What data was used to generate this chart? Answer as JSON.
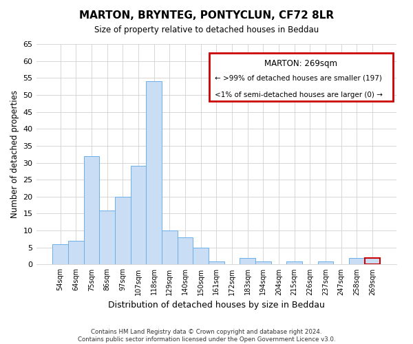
{
  "title": "MARTON, BRYNTEG, PONTYCLUN, CF72 8LR",
  "subtitle": "Size of property relative to detached houses in Beddau",
  "xlabel": "Distribution of detached houses by size in Beddau",
  "ylabel": "Number of detached properties",
  "categories": [
    "54sqm",
    "64sqm",
    "75sqm",
    "86sqm",
    "97sqm",
    "107sqm",
    "118sqm",
    "129sqm",
    "140sqm",
    "150sqm",
    "161sqm",
    "172sqm",
    "183sqm",
    "194sqm",
    "204sqm",
    "215sqm",
    "226sqm",
    "237sqm",
    "247sqm",
    "258sqm",
    "269sqm"
  ],
  "values": [
    6,
    7,
    32,
    16,
    20,
    29,
    54,
    10,
    8,
    5,
    1,
    0,
    2,
    1,
    0,
    1,
    0,
    1,
    0,
    2,
    2
  ],
  "bar_color": "#c9ddf5",
  "bar_edge_color": "#6aaee8",
  "ylim": [
    0,
    65
  ],
  "yticks": [
    0,
    5,
    10,
    15,
    20,
    25,
    30,
    35,
    40,
    45,
    50,
    55,
    60,
    65
  ],
  "legend_title": "MARTON: 269sqm",
  "legend_line1": "← >99% of detached houses are smaller (197)",
  "legend_line2": "<1% of semi-detached houses are larger (0) →",
  "legend_box_color": "#ffffff",
  "legend_box_edge_color": "#cc0000",
  "footer_line1": "Contains HM Land Registry data © Crown copyright and database right 2024.",
  "footer_line2": "Contains public sector information licensed under the Open Government Licence v3.0.",
  "marker_bar_index": 20,
  "marker_bar_edge_color": "#cc0000",
  "bg_color": "#ffffff"
}
